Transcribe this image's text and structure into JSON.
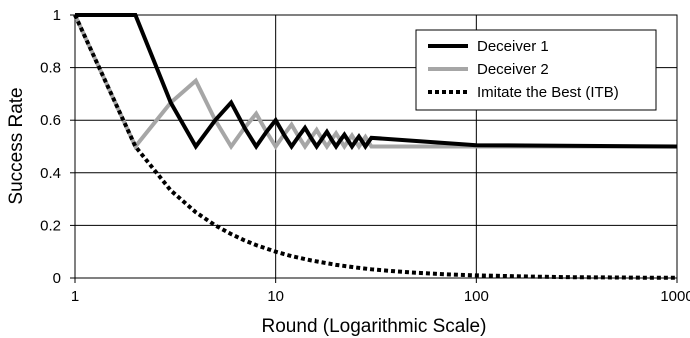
{
  "chart_data": {
    "type": "line",
    "x_scale": "log",
    "xlabel": "Round (Logarithmic Scale)",
    "ylabel": "Success Rate",
    "xlim": [
      1,
      1000
    ],
    "ylim": [
      0,
      1
    ],
    "x_ticks": [
      1,
      10,
      100,
      1000
    ],
    "x_tick_labels": [
      "1",
      "10",
      "100",
      "1000"
    ],
    "y_ticks": [
      0,
      0.2,
      0.4,
      0.6,
      0.8,
      1
    ],
    "y_tick_labels": [
      "0",
      "0.2",
      "0.4",
      "0.6",
      "0.8",
      "1"
    ],
    "grid": true,
    "legend_position": "top-right",
    "series": [
      {
        "name": "Deceiver 1",
        "color": "#000000",
        "style": "solid",
        "x": [
          1,
          2,
          3,
          4,
          5,
          6,
          7,
          8,
          9,
          10,
          11,
          12,
          13,
          14,
          15,
          16,
          17,
          18,
          19,
          20,
          21,
          22,
          23,
          24,
          25,
          26,
          27,
          28,
          29,
          30,
          100,
          1000
        ],
        "y": [
          1,
          1,
          0.667,
          0.5,
          0.6,
          0.667,
          0.571,
          0.5,
          0.556,
          0.6,
          0.545,
          0.5,
          0.538,
          0.571,
          0.533,
          0.5,
          0.529,
          0.556,
          0.526,
          0.5,
          0.524,
          0.545,
          0.522,
          0.5,
          0.52,
          0.538,
          0.519,
          0.5,
          0.517,
          0.533,
          0.505,
          0.5
        ]
      },
      {
        "name": "Deceiver 2",
        "color": "#a6a6a6",
        "style": "solid",
        "x": [
          1,
          2,
          3,
          4,
          5,
          6,
          7,
          8,
          9,
          10,
          11,
          12,
          13,
          14,
          15,
          16,
          17,
          18,
          19,
          20,
          21,
          22,
          23,
          24,
          25,
          26,
          27,
          28,
          29,
          30,
          100,
          1000
        ],
        "y": [
          1,
          0.5,
          0.667,
          0.75,
          0.6,
          0.5,
          0.571,
          0.625,
          0.556,
          0.5,
          0.545,
          0.583,
          0.538,
          0.5,
          0.533,
          0.563,
          0.529,
          0.5,
          0.526,
          0.55,
          0.524,
          0.5,
          0.522,
          0.542,
          0.52,
          0.5,
          0.519,
          0.536,
          0.517,
          0.5,
          0.5,
          0.5
        ]
      },
      {
        "name": "Imitate the Best (ITB)",
        "color": "#000000",
        "style": "dotted",
        "x": [
          1,
          2,
          3,
          4,
          5,
          6,
          7,
          8,
          10,
          12,
          15,
          20,
          25,
          30,
          40,
          50,
          70,
          100,
          150,
          200,
          300,
          500,
          700,
          1000
        ],
        "y": [
          1,
          0.5,
          0.333,
          0.25,
          0.2,
          0.167,
          0.143,
          0.125,
          0.1,
          0.083,
          0.067,
          0.05,
          0.04,
          0.033,
          0.025,
          0.02,
          0.014,
          0.01,
          0.007,
          0.005,
          0.003,
          0.002,
          0.001,
          0.001
        ]
      }
    ]
  }
}
